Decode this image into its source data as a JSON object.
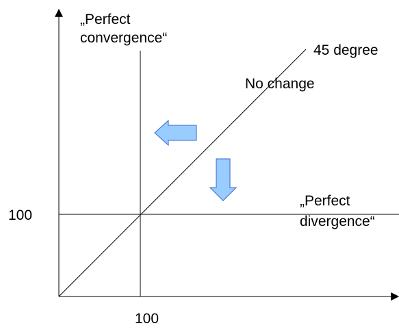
{
  "labels": {
    "convergence": [
      "„Perfect",
      "convergence“"
    ],
    "degree": "45 degree",
    "no_change": "No change",
    "divergence": [
      "„Perfect",
      "divergence“"
    ],
    "y_value": "100",
    "x_value": "100"
  }
}
